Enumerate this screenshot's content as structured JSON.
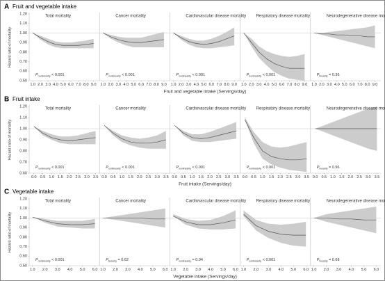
{
  "chart_data": [
    {
      "type": "line",
      "label": "A",
      "title": "Fruit and vegetable intake",
      "ylabel": "Hazard ratio of mortality",
      "xlabel": "Fruit and vegetable intake (Servings/day)",
      "color": "#555555",
      "band_color": "#cccccc",
      "reference_line": 1,
      "x": [
        1,
        2,
        3,
        4,
        5,
        6,
        7,
        8,
        9
      ],
      "xlim": [
        0.8,
        9.5
      ],
      "xticks": [
        {
          "value": 1,
          "label": "1.0"
        },
        {
          "value": 2,
          "label": "2.0"
        },
        {
          "value": 3,
          "label": "3.0"
        },
        {
          "value": 4,
          "label": "4.0"
        },
        {
          "value": 5,
          "label": "5.0"
        },
        {
          "value": 6,
          "label": "6.0"
        },
        {
          "value": 7,
          "label": "7.0"
        },
        {
          "value": 8,
          "label": "8.0"
        },
        {
          "value": 9,
          "label": "9.0"
        }
      ],
      "ylim": [
        0.5,
        1.2
      ],
      "yticks": [
        {
          "value": 0.5,
          "label": "0.50"
        },
        {
          "value": 0.6,
          "label": "0.60"
        },
        {
          "value": 0.7,
          "label": "0.70"
        },
        {
          "value": 0.8,
          "label": "0.80"
        },
        {
          "value": 0.9,
          "label": "0.90"
        },
        {
          "value": 1,
          "label": "1.00"
        },
        {
          "value": 1.1,
          "label": "1.10"
        },
        {
          "value": 1.2,
          "label": "1.20"
        }
      ],
      "panels": [
        {
          "title": "Total mortality",
          "p": {
            "symbol": "P",
            "subscript": "nonlinearity",
            "text": " < 0.001"
          },
          "values": [
            1.0,
            0.95,
            0.91,
            0.88,
            0.87,
            0.87,
            0.87,
            0.88,
            0.89
          ],
          "lower": [
            1.0,
            0.93,
            0.88,
            0.85,
            0.84,
            0.84,
            0.84,
            0.84,
            0.84
          ],
          "upper": [
            1.0,
            0.97,
            0.94,
            0.91,
            0.9,
            0.9,
            0.91,
            0.92,
            0.94
          ]
        },
        {
          "title": "Cancer mortality",
          "p": {
            "symbol": "P",
            "subscript": "nonlinearity",
            "text": " < 0.001"
          },
          "values": [
            1.0,
            0.96,
            0.93,
            0.91,
            0.9,
            0.9,
            0.91,
            0.92,
            0.93
          ],
          "lower": [
            1.0,
            0.94,
            0.9,
            0.87,
            0.85,
            0.85,
            0.85,
            0.85,
            0.85
          ],
          "upper": [
            1.0,
            0.98,
            0.96,
            0.95,
            0.95,
            0.95,
            0.97,
            0.99,
            1.01
          ]
        },
        {
          "title": "Cardiovascular disease mortality",
          "p": {
            "symbol": "P",
            "subscript": "nonlinearity",
            "text": " < 0.001"
          },
          "values": [
            1.0,
            0.95,
            0.91,
            0.89,
            0.88,
            0.89,
            0.91,
            0.94,
            0.97
          ],
          "lower": [
            1.0,
            0.93,
            0.88,
            0.85,
            0.84,
            0.84,
            0.85,
            0.86,
            0.87
          ],
          "upper": [
            1.0,
            0.97,
            0.94,
            0.92,
            0.92,
            0.94,
            0.97,
            1.01,
            1.06
          ]
        },
        {
          "title": "Respiratory disease mortality",
          "p": {
            "symbol": "P",
            "subscript": "nonlinearity",
            "text": " < 0.001"
          },
          "values": [
            1.0,
            0.9,
            0.8,
            0.73,
            0.68,
            0.65,
            0.63,
            0.63,
            0.63
          ],
          "lower": [
            1.0,
            0.86,
            0.74,
            0.66,
            0.59,
            0.55,
            0.52,
            0.51,
            0.5
          ],
          "upper": [
            1.0,
            0.94,
            0.86,
            0.81,
            0.78,
            0.76,
            0.75,
            0.76,
            0.78
          ]
        },
        {
          "title": "Neurodegenerative disease mortality",
          "p": {
            "symbol": "P",
            "subscript": "linearity",
            "text": " = 0.36"
          },
          "values": [
            1.0,
            0.99,
            0.99,
            0.98,
            0.98,
            0.97,
            0.97,
            0.96,
            0.96
          ],
          "lower": [
            1.0,
            0.98,
            0.96,
            0.94,
            0.92,
            0.9,
            0.88,
            0.86,
            0.84
          ],
          "upper": [
            1.0,
            1.0,
            1.01,
            1.02,
            1.03,
            1.04,
            1.05,
            1.06,
            1.08
          ]
        }
      ]
    },
    {
      "type": "line",
      "label": "B",
      "title": "Fruit intake",
      "ylabel": "Hazard ratio of mortality",
      "xlabel": "Fruit intake (Servings/day)",
      "color": "#555555",
      "band_color": "#cccccc",
      "reference_line": 1,
      "x": [
        0,
        0.5,
        1,
        1.5,
        2,
        2.5,
        3,
        3.5
      ],
      "xlim": [
        -0.15,
        3.6
      ],
      "xticks": [
        {
          "value": 0,
          "label": "0.0"
        },
        {
          "value": 0.5,
          "label": "0.5"
        },
        {
          "value": 1,
          "label": "1.0"
        },
        {
          "value": 1.5,
          "label": "1.5"
        },
        {
          "value": 2,
          "label": "2.0"
        },
        {
          "value": 2.5,
          "label": "2.5"
        },
        {
          "value": 3,
          "label": "3.0"
        },
        {
          "value": 3.5,
          "label": "3.5"
        }
      ],
      "ylim": [
        0.6,
        1.2
      ],
      "yticks": [
        {
          "value": 0.6,
          "label": "0.60"
        },
        {
          "value": 0.7,
          "label": "0.70"
        },
        {
          "value": 0.8,
          "label": "0.80"
        },
        {
          "value": 0.9,
          "label": "0.90"
        },
        {
          "value": 1,
          "label": "1.00"
        },
        {
          "value": 1.1,
          "label": "1.10"
        },
        {
          "value": 1.2,
          "label": "1.20"
        }
      ],
      "panels": [
        {
          "title": "Total mortality",
          "p": {
            "symbol": "P",
            "subscript": "nonlinearity",
            "text": " < 0.001"
          },
          "values": [
            1.02,
            0.96,
            0.92,
            0.9,
            0.89,
            0.9,
            0.91,
            0.92
          ],
          "lower": [
            1.02,
            0.94,
            0.9,
            0.87,
            0.86,
            0.86,
            0.86,
            0.86
          ],
          "upper": [
            1.02,
            0.98,
            0.95,
            0.93,
            0.93,
            0.94,
            0.96,
            0.98
          ]
        },
        {
          "title": "Cancer mortality",
          "p": {
            "symbol": "P",
            "subscript": "nonlinearity",
            "text": " < 0.001"
          },
          "values": [
            1.03,
            0.96,
            0.91,
            0.88,
            0.87,
            0.87,
            0.88,
            0.9
          ],
          "lower": [
            1.03,
            0.94,
            0.88,
            0.85,
            0.83,
            0.82,
            0.82,
            0.82
          ],
          "upper": [
            1.03,
            0.98,
            0.94,
            0.92,
            0.91,
            0.92,
            0.94,
            0.98
          ]
        },
        {
          "title": "Cardiovascular disease mortality",
          "p": {
            "symbol": "P",
            "subscript": "nonlinearity",
            "text": " < 0.001"
          },
          "values": [
            1.03,
            0.96,
            0.92,
            0.91,
            0.92,
            0.94,
            0.96,
            0.98
          ],
          "lower": [
            1.03,
            0.94,
            0.89,
            0.88,
            0.88,
            0.89,
            0.9,
            0.91
          ],
          "upper": [
            1.03,
            0.98,
            0.95,
            0.95,
            0.97,
            1.0,
            1.03,
            1.06
          ]
        },
        {
          "title": "Respiratory disease mortality",
          "p": {
            "symbol": "P",
            "subscript": "nonlinearity",
            "text": " < 0.001"
          },
          "values": [
            1.08,
            0.92,
            0.8,
            0.75,
            0.73,
            0.72,
            0.72,
            0.73
          ],
          "lower": [
            1.08,
            0.87,
            0.73,
            0.68,
            0.65,
            0.63,
            0.62,
            0.61
          ],
          "upper": [
            1.1,
            0.97,
            0.88,
            0.84,
            0.83,
            0.84,
            0.86,
            0.88
          ]
        },
        {
          "title": "Neurodegenerative disease mortality",
          "p": {
            "symbol": "P",
            "subscript": "linearity",
            "text": " = 0.96"
          },
          "values": [
            1.0,
            1.0,
            1.0,
            1.0,
            1.0,
            1.0,
            1.0,
            1.0
          ],
          "lower": [
            1.0,
            0.97,
            0.94,
            0.91,
            0.88,
            0.85,
            0.82,
            0.8
          ],
          "upper": [
            1.0,
            1.03,
            1.06,
            1.09,
            1.12,
            1.15,
            1.18,
            1.2
          ]
        }
      ]
    },
    {
      "type": "line",
      "label": "C",
      "title": "Vegetable intake",
      "ylabel": "Hazard ratio of mortality",
      "xlabel": "Vegetable intake (Servings/day)",
      "color": "#555555",
      "band_color": "#cccccc",
      "reference_line": 1,
      "x": [
        1,
        2,
        3,
        4,
        5,
        6
      ],
      "xlim": [
        0.9,
        6.2
      ],
      "xticks": [
        {
          "value": 1,
          "label": "1.0"
        },
        {
          "value": 2,
          "label": "2.0"
        },
        {
          "value": 3,
          "label": "3.0"
        },
        {
          "value": 4,
          "label": "4.0"
        },
        {
          "value": 5,
          "label": "5.0"
        },
        {
          "value": 6,
          "label": "6.0"
        }
      ],
      "ylim": [
        0.5,
        1.2
      ],
      "yticks": [
        {
          "value": 0.5,
          "label": "0.50"
        },
        {
          "value": 0.6,
          "label": "0.60"
        },
        {
          "value": 0.7,
          "label": "0.70"
        },
        {
          "value": 0.8,
          "label": "0.80"
        },
        {
          "value": 0.9,
          "label": "0.90"
        },
        {
          "value": 1,
          "label": "1.00"
        },
        {
          "value": 1.1,
          "label": "1.10"
        },
        {
          "value": 1.2,
          "label": "1.20"
        }
      ],
      "panels": [
        {
          "title": "Total mortality",
          "p": {
            "symbol": "P",
            "subscript": "nonlinearity",
            "text": " < 0.001"
          },
          "values": [
            1.01,
            0.97,
            0.94,
            0.93,
            0.93,
            0.94
          ],
          "lower": [
            1.01,
            0.95,
            0.91,
            0.9,
            0.89,
            0.89
          ],
          "upper": [
            1.01,
            0.99,
            0.97,
            0.97,
            0.97,
            0.99
          ]
        },
        {
          "title": "Cancer mortality",
          "p": {
            "symbol": "P",
            "subscript": "linearity",
            "text": " = 0.62"
          },
          "values": [
            1.0,
            1.0,
            1.0,
            1.0,
            0.99,
            0.99
          ],
          "lower": [
            1.0,
            0.98,
            0.96,
            0.94,
            0.92,
            0.9
          ],
          "upper": [
            1.0,
            1.02,
            1.04,
            1.06,
            1.08,
            1.1
          ]
        },
        {
          "title": "Cardiovascular disease mortality",
          "p": {
            "symbol": "P",
            "subscript": "nonlinearity",
            "text": " = 0.04"
          },
          "values": [
            1.02,
            0.96,
            0.93,
            0.93,
            0.95,
            0.98
          ],
          "lower": [
            1.02,
            0.93,
            0.89,
            0.88,
            0.88,
            0.89
          ],
          "upper": [
            1.04,
            0.99,
            0.97,
            0.98,
            1.02,
            1.08
          ]
        },
        {
          "title": "Respiratory disease mortality",
          "p": {
            "symbol": "P",
            "subscript": "nonlinearity",
            "text": " < 0.001"
          },
          "values": [
            1.04,
            0.92,
            0.86,
            0.83,
            0.82,
            0.82
          ],
          "lower": [
            1.02,
            0.87,
            0.79,
            0.74,
            0.71,
            0.7
          ],
          "upper": [
            1.08,
            0.98,
            0.94,
            0.93,
            0.94,
            0.96
          ]
        },
        {
          "title": "Neurodegenerative disease mortality",
          "p": {
            "symbol": "P",
            "subscript": "linearity",
            "text": " = 0.68"
          },
          "values": [
            1.0,
            1.0,
            0.99,
            0.99,
            0.98,
            0.98
          ],
          "lower": [
            1.0,
            0.96,
            0.93,
            0.9,
            0.87,
            0.84
          ],
          "upper": [
            1.0,
            1.04,
            1.06,
            1.08,
            1.1,
            1.12
          ]
        }
      ]
    }
  ]
}
